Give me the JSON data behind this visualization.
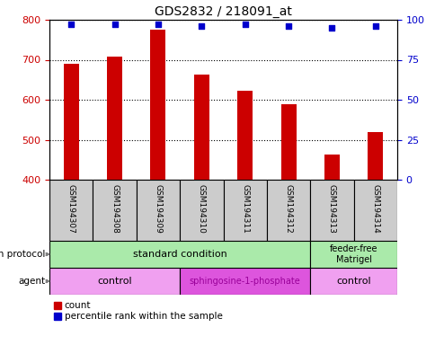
{
  "title": "GDS2832 / 218091_at",
  "samples": [
    "GSM194307",
    "GSM194308",
    "GSM194309",
    "GSM194310",
    "GSM194311",
    "GSM194312",
    "GSM194313",
    "GSM194314"
  ],
  "counts": [
    690,
    708,
    775,
    663,
    622,
    588,
    463,
    519
  ],
  "percentile_ranks": [
    97,
    97,
    97,
    96,
    97,
    96,
    95,
    96
  ],
  "ylim_left": [
    400,
    800
  ],
  "ylim_right": [
    0,
    100
  ],
  "yticks_left": [
    400,
    500,
    600,
    700,
    800
  ],
  "yticks_right": [
    0,
    25,
    50,
    75,
    100
  ],
  "bar_color": "#cc0000",
  "dot_color": "#0000cc",
  "grid_color": "#000000",
  "growth_protocol_groups": [
    {
      "label": "standard condition",
      "start": 0,
      "end": 6,
      "color": "#aaeaaa"
    },
    {
      "label": "feeder-free\nMatrigel",
      "start": 6,
      "end": 8,
      "color": "#aaeaaa"
    }
  ],
  "agent_groups": [
    {
      "label": "control",
      "start": 0,
      "end": 3,
      "color": "#f0a0f0"
    },
    {
      "label": "sphingosine-1-phosphate",
      "start": 3,
      "end": 6,
      "color": "#dd55dd"
    },
    {
      "label": "control",
      "start": 6,
      "end": 8,
      "color": "#f0a0f0"
    }
  ],
  "legend_items": [
    {
      "label": "count",
      "color": "#cc0000"
    },
    {
      "label": "percentile rank within the sample",
      "color": "#0000cc"
    }
  ],
  "bg_color": "#ffffff",
  "sample_box_color": "#cccccc"
}
